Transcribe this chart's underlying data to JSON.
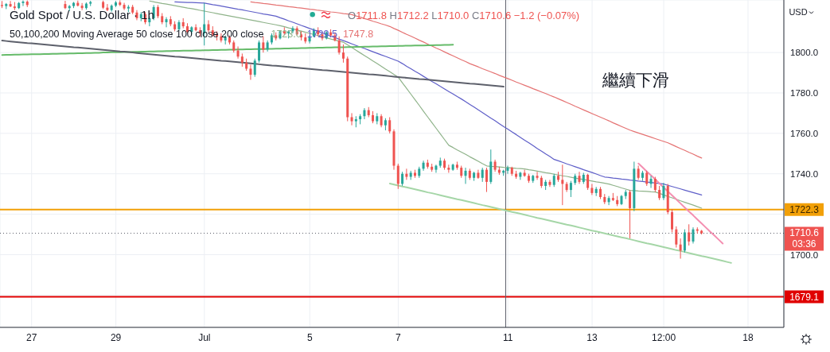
{
  "chart_data": {
    "type": "candlestick",
    "title": "Gold Spot / U.S. Dollar · 1h",
    "subtitle": "50,100,200 Moving Average 50 close 100 close 200 close",
    "ylabel": "USD",
    "annotations": [
      "O1711.8 H1712.2 L1710.0 C1710.6 −1.2 (−0.07%)",
      "繼續下滑",
      "1722.3",
      "1679.1",
      "1710.6\n03:36"
    ],
    "categories": [
      null,
      null,
      null,
      null,
      null,
      null,
      null,
      "27",
      null,
      null,
      null,
      null,
      null,
      null,
      null,
      null,
      null,
      null,
      null,
      null,
      null,
      null,
      null,
      null,
      null,
      null,
      null,
      "29",
      null,
      null,
      null,
      null,
      null,
      null,
      null,
      null,
      null,
      null,
      null,
      null,
      null,
      null,
      null,
      null,
      null,
      null,
      null,
      null,
      "Jul",
      null,
      null,
      null,
      null,
      null,
      null,
      null,
      null,
      null,
      null,
      null,
      null,
      null,
      null,
      null,
      null,
      null,
      null,
      null,
      null,
      null,
      null,
      null,
      null,
      "5",
      null,
      null,
      null,
      null,
      null,
      null,
      null,
      null,
      null,
      null,
      null,
      null,
      null,
      null,
      null,
      null,
      null,
      null,
      null,
      null,
      "7",
      null,
      null,
      null,
      null,
      null,
      null,
      null,
      null,
      null,
      null,
      null,
      null,
      null,
      null,
      null,
      null,
      null,
      null,
      null,
      null,
      null,
      null,
      null,
      null,
      null,
      "11",
      null,
      null,
      null,
      null,
      null,
      null,
      null,
      null,
      null,
      null,
      null,
      null,
      null,
      null,
      null,
      null,
      null,
      null,
      null,
      "13",
      null,
      null,
      null,
      null,
      null,
      null,
      null,
      null,
      null,
      null,
      null,
      null,
      null,
      null,
      null,
      null,
      "12:00",
      null,
      null,
      null,
      null,
      null,
      null,
      null,
      null,
      null,
      null,
      null,
      null,
      null,
      null,
      null,
      null,
      null,
      null,
      null,
      "18",
      null,
      null,
      null,
      null,
      null,
      null,
      null,
      null
    ],
    "ohlc": [
      [
        1823.5,
        1825.5,
        1822,
        1823
      ],
      [
        1823,
        1824.5,
        1821.5,
        1824
      ],
      [
        1824,
        1825.5,
        1822.5,
        1822.8
      ],
      [
        1822.8,
        1825,
        1821,
        1822
      ],
      [
        1822,
        1825,
        1821.5,
        1824.5
      ],
      [
        1824.5,
        1825.8,
        1823,
        1825.2
      ],
      [
        1825.2,
        1825.8,
        1822.5,
        1823.5
      ],
      null,
      null,
      null,
      null,
      null,
      null,
      null,
      null,
      [
        1824,
        1825.6,
        1821.5,
        1822
      ],
      [
        1822,
        1823.5,
        1820.5,
        1823
      ],
      [
        1823,
        1825,
        1822,
        1824.6
      ],
      [
        1824.6,
        1825.7,
        1822.8,
        1823.2
      ],
      [
        1823.2,
        1824.5,
        1821,
        1822
      ],
      [
        1822,
        1824.8,
        1821.2,
        1824.2
      ],
      [
        1824.2,
        1825.6,
        1823,
        1825
      ],
      null,
      null,
      [
        1825,
        1825.7,
        1821.5,
        1822.2
      ],
      [
        1822.2,
        1824,
        1820.5,
        1821
      ],
      [
        1821,
        1823.8,
        1820.2,
        1823.2
      ],
      [
        1823.2,
        1825.5,
        1822.5,
        1824.8
      ],
      [
        1824.8,
        1825.8,
        1823,
        1823.6
      ],
      [
        1823.6,
        1824.6,
        1821,
        1821.8
      ],
      [
        1821.8,
        1823.5,
        1820,
        1822.6
      ],
      [
        1822.6,
        1823.6,
        1819,
        1819.8
      ],
      [
        1819.8,
        1821,
        1816,
        1817
      ],
      [
        1817,
        1820,
        1815.5,
        1819
      ],
      [
        1819,
        1820,
        1814,
        1815
      ],
      [
        1815,
        1818,
        1813,
        1817
      ],
      [
        1817,
        1823.5,
        1816,
        1822.5
      ],
      [
        1822.5,
        1823.5,
        1817,
        1818
      ],
      [
        1818,
        1819.5,
        1814,
        1815
      ],
      [
        1815,
        1817.5,
        1812.5,
        1816.5
      ],
      [
        1816.5,
        1818,
        1813,
        1814
      ],
      [
        1814,
        1815.5,
        1810.5,
        1811.5
      ],
      [
        1811.5,
        1816,
        1810.8,
        1815
      ],
      [
        1815,
        1817,
        1812,
        1813
      ],
      [
        1813,
        1814.5,
        1809.5,
        1810.2
      ],
      [
        1810.2,
        1813,
        1809,
        1812.5
      ],
      [
        1812.5,
        1814,
        1810.5,
        1811
      ],
      [
        1811,
        1812.5,
        1808,
        1809.5
      ],
      [
        1809.5,
        1824.5,
        1803.5,
        1814
      ],
      [
        1814,
        1816,
        1810,
        1811
      ],
      [
        1811,
        1813,
        1808,
        1809
      ],
      [
        1809,
        1810.5,
        1806,
        1808
      ],
      [
        1808,
        1809.5,
        1805,
        1806
      ],
      [
        1806,
        1808.5,
        1804,
        1807.5
      ],
      [
        1807.5,
        1808.5,
        1804,
        1805
      ],
      [
        1805,
        1806,
        1800,
        1801
      ],
      [
        1801,
        1803,
        1797,
        1798
      ],
      [
        1798,
        1799.5,
        1793,
        1795
      ],
      [
        1795,
        1797,
        1791,
        1792
      ],
      [
        1792,
        1794,
        1786.5,
        1789
      ],
      [
        1789,
        1797,
        1788,
        1796
      ],
      [
        1796,
        1806,
        1795,
        1805
      ],
      [
        1805,
        1808,
        1800,
        1801.5
      ],
      [
        1801.5,
        1806,
        1800.5,
        1805
      ],
      [
        1805,
        1809.5,
        1804,
        1808.5
      ],
      [
        1808.5,
        1810,
        1806,
        1807
      ],
      [
        1807,
        1811,
        1806.5,
        1810.5
      ],
      [
        1810.5,
        1812.5,
        1808.5,
        1809.5
      ],
      [
        1809.5,
        1811,
        1807,
        1810.5
      ],
      [
        1810.5,
        1813,
        1809.5,
        1812
      ],
      [
        1812,
        1813,
        1808.5,
        1809
      ],
      [
        1809,
        1810.5,
        1806,
        1807.5
      ],
      [
        1807.5,
        1809.5,
        1804.5,
        1805.5
      ],
      [
        1805.5,
        1808.5,
        1804.5,
        1808
      ],
      [
        1808,
        1812,
        1807.5,
        1811
      ],
      [
        1811,
        1812.5,
        1808,
        1809
      ],
      [
        1809,
        1810,
        1806,
        1807
      ],
      [
        1807,
        1810.5,
        1806.5,
        1810
      ],
      [
        1810,
        1811.5,
        1807.5,
        1808.5
      ],
      [
        1808.5,
        1810,
        1805.5,
        1806
      ],
      [
        1806,
        1808,
        1799,
        1800
      ],
      [
        1800,
        1804,
        1795,
        1797
      ],
      [
        1797,
        1798,
        1766,
        1768
      ],
      [
        1768,
        1770,
        1764,
        1766
      ],
      [
        1766,
        1768.5,
        1763,
        1767
      ],
      [
        1767,
        1769.5,
        1764.5,
        1768.5
      ],
      [
        1768.5,
        1772.5,
        1767,
        1771.5
      ],
      [
        1771.5,
        1773,
        1768,
        1769
      ],
      [
        1769,
        1771,
        1765,
        1766
      ],
      [
        1766,
        1770,
        1764.5,
        1768.5
      ],
      [
        1768.5,
        1769.5,
        1763,
        1764
      ],
      [
        1764,
        1767.5,
        1761.5,
        1766.5
      ],
      [
        1766.5,
        1768,
        1760,
        1761
      ],
      [
        1761,
        1762,
        1742,
        1744
      ],
      [
        1744,
        1745,
        1732.5,
        1735
      ],
      [
        1735,
        1741,
        1734,
        1740
      ],
      [
        1740,
        1742.5,
        1737,
        1738.5
      ],
      [
        1738.5,
        1741.5,
        1737,
        1740.5
      ],
      [
        1740.5,
        1742,
        1738,
        1739
      ],
      [
        1739,
        1743.5,
        1738,
        1742.5
      ],
      [
        1742.5,
        1746.5,
        1741.5,
        1745.5
      ],
      [
        1745.5,
        1747,
        1742.5,
        1743.5
      ],
      [
        1743.5,
        1745,
        1741,
        1742
      ],
      [
        1742,
        1744.5,
        1740.5,
        1744
      ],
      [
        1744,
        1748,
        1743,
        1746.5
      ],
      [
        1746.5,
        1747.5,
        1742,
        1743
      ],
      [
        1743,
        1744.5,
        1740.5,
        1742
      ],
      [
        1742,
        1745,
        1741.5,
        1744.5
      ],
      [
        1744.5,
        1746,
        1742,
        1743
      ],
      [
        1743,
        1744,
        1738,
        1739
      ],
      [
        1739,
        1743,
        1735,
        1741.5
      ],
      [
        1741.5,
        1742.5,
        1737,
        1738
      ],
      [
        1738,
        1741,
        1736.5,
        1740.5
      ],
      [
        1740.5,
        1742,
        1737.5,
        1738
      ],
      [
        1738,
        1743,
        1736,
        1742
      ],
      [
        1742,
        1743,
        1731,
        1736
      ],
      [
        1736,
        1752,
        1735,
        1746
      ],
      [
        1746,
        1747,
        1741,
        1742
      ],
      [
        1742,
        1743.5,
        1739.5,
        1740.5
      ],
      [
        1740.5,
        1742,
        1739,
        1741.5
      ],
      [
        1741.5,
        1744,
        1740,
        1743
      ],
      [
        1743,
        1743.5,
        1739,
        1740
      ],
      [
        1740,
        1741.5,
        1737.5,
        1738.5
      ],
      [
        1738.5,
        1741,
        1737,
        1740.5
      ],
      [
        1740.5,
        1742,
        1738.5,
        1739
      ],
      [
        1739,
        1740,
        1735.5,
        1736.5
      ],
      [
        1736.5,
        1739.5,
        1735.5,
        1739
      ],
      [
        1739,
        1741,
        1737,
        1738
      ],
      [
        1738,
        1739,
        1733,
        1734
      ],
      [
        1734,
        1737,
        1732,
        1736
      ],
      [
        1736,
        1737,
        1733.5,
        1734.5
      ],
      [
        1734.5,
        1740,
        1733.5,
        1739
      ],
      [
        1739,
        1741,
        1736,
        1737
      ],
      [
        1737,
        1744.5,
        1724.5,
        1735
      ],
      [
        1735,
        1736,
        1731,
        1732
      ],
      [
        1732,
        1736.5,
        1728.5,
        1735.5
      ],
      [
        1735.5,
        1740,
        1734.5,
        1739
      ],
      [
        1739,
        1741,
        1735,
        1736
      ],
      [
        1736,
        1740.5,
        1735,
        1739.5
      ],
      [
        1739.5,
        1740,
        1732,
        1733
      ],
      [
        1733,
        1735,
        1729.5,
        1730.5
      ],
      [
        1730.5,
        1733.5,
        1729,
        1732.5
      ],
      [
        1732.5,
        1733.5,
        1727.5,
        1728.5
      ],
      [
        1728.5,
        1730,
        1725,
        1726
      ],
      [
        1726,
        1729,
        1724.5,
        1728
      ],
      [
        1728,
        1730.5,
        1726.5,
        1727
      ],
      [
        1727,
        1729,
        1724,
        1725
      ],
      [
        1725,
        1729.5,
        1724.5,
        1729
      ],
      [
        1729,
        1732,
        1727.5,
        1731
      ],
      [
        1731,
        1732,
        1708,
        1723
      ],
      [
        1723,
        1746,
        1721.5,
        1742.5
      ],
      [
        1742.5,
        1744,
        1737,
        1738
      ],
      [
        1738,
        1741.5,
        1736.5,
        1740.5
      ],
      [
        1740.5,
        1741.5,
        1734,
        1735
      ],
      [
        1735,
        1739,
        1733,
        1737.5
      ],
      [
        1737.5,
        1738.5,
        1731,
        1732
      ],
      [
        1732,
        1734,
        1727,
        1728
      ],
      [
        1728,
        1735.5,
        1727,
        1734
      ],
      [
        1734,
        1735,
        1720,
        1721
      ],
      [
        1721,
        1722.5,
        1711,
        1712.5
      ],
      [
        1712.5,
        1714,
        1703.5,
        1705
      ],
      [
        1705,
        1708,
        1698,
        1702
      ],
      [
        1702,
        1712.5,
        1701,
        1711
      ],
      [
        1711,
        1715,
        1704.5,
        1706.5
      ],
      [
        1706.5,
        1713.5,
        1705.5,
        1712.5
      ],
      [
        1712.5,
        1713.5,
        1710.5,
        1711.8
      ],
      [
        1711.8,
        1712.2,
        1710.0,
        1710.6
      ],
      null,
      null,
      null,
      null,
      null,
      null,
      null,
      null,
      null,
      null,
      null,
      null,
      null,
      null,
      null,
      null,
      null,
      null,
      null
    ],
    "series": [
      {
        "type": "line",
        "name": "1723.0",
        "color": "#8fb38a",
        "values": [
          null,
          null,
          null,
          null,
          null,
          null,
          null,
          null,
          null,
          null,
          null,
          null,
          null,
          null,
          null,
          null,
          null,
          null,
          null,
          null,
          null,
          null,
          null,
          null,
          null,
          null,
          null,
          null,
          null,
          null,
          null,
          null,
          null,
          null,
          null,
          1825.5,
          1825.1,
          1824.7,
          1824.3,
          1824.0,
          1823.6,
          1823.2,
          1822.8,
          1822.4,
          1822.0,
          1821.7,
          1821.3,
          1820.9,
          1820.5,
          1820.1,
          1819.7,
          1819.3,
          1818.9,
          1818.5,
          1818.1,
          1817.7,
          1817.3,
          1816.9,
          1816.5,
          1816.1,
          1815.7,
          1815.3,
          1814.9,
          1814.5,
          1814.1,
          1813.7,
          1813.3,
          1812.8,
          1812.2,
          1811.7,
          1811.1,
          1810.6,
          1810.0,
          1809.5,
          1808.9,
          1808.4,
          1807.8,
          1807.3,
          1806.7,
          1806.2,
          1805.6,
          1805.1,
          1803.8,
          1802.5,
          1801.1,
          1799.8,
          1798.5,
          1797.2,
          1795.8,
          1794.5,
          1793.2,
          1791.8,
          1790.5,
          1789.1,
          1787.8,
          1785.0,
          1782.2,
          1779.4,
          1776.6,
          1773.8,
          1770.9,
          1768.1,
          1765.3,
          1762.5,
          1759.7,
          1756.9,
          1754.1,
          1753.0,
          1751.8,
          1750.7,
          1749.6,
          1748.4,
          1747.3,
          1746.2,
          1745.0,
          1743.9,
          1743.7,
          1743.6,
          1743.4,
          1743.2,
          1743.1,
          1742.9,
          1742.7,
          1742.6,
          1742.4,
          1742.0,
          1741.7,
          1741.3,
          1740.9,
          1740.5,
          1740.2,
          1739.8,
          1739.4,
          1739.0,
          1738.7,
          1738.3,
          1737.9,
          1737.5,
          1737.2,
          1736.8,
          1736.4,
          1736.0,
          1735.7,
          1735.3,
          1734.9,
          1734.3,
          1733.7,
          1733.0,
          1732.4,
          1731.8,
          1731.7,
          1731.5,
          1731.4,
          1731.3,
          1731.1,
          1731.0,
          1730.3,
          1729.5,
          1728.8,
          1728.1,
          1727.4,
          1726.6,
          1725.9,
          1725.2,
          1724.5,
          1723.7,
          1723.0,
          null,
          null,
          null,
          null,
          null,
          null,
          null,
          null,
          null,
          null,
          null,
          null,
          null,
          null,
          null,
          null,
          null,
          null,
          null
        ]
      },
      {
        "type": "line",
        "name": "1729.5",
        "color": "#5e5ec8",
        "values": [
          null,
          null,
          null,
          null,
          null,
          null,
          null,
          null,
          null,
          null,
          null,
          null,
          null,
          null,
          null,
          null,
          null,
          null,
          null,
          null,
          null,
          null,
          null,
          null,
          null,
          null,
          null,
          null,
          null,
          null,
          null,
          null,
          null,
          null,
          null,
          null,
          null,
          null,
          null,
          null,
          null,
          1825.1,
          1825.0,
          1824.9,
          1824.8,
          1824.8,
          1824.7,
          1824.6,
          1824.5,
          1824.1,
          1823.7,
          1823.4,
          1823.0,
          1822.6,
          1822.2,
          1821.8,
          1821.4,
          1821.1,
          1820.7,
          1820.3,
          1819.9,
          1819.5,
          1819.1,
          1818.8,
          1818.4,
          1818.0,
          1817.2,
          1816.5,
          1815.7,
          1815.0,
          1814.2,
          1813.4,
          1812.7,
          1811.9,
          1811.2,
          1810.4,
          1809.7,
          1808.9,
          1808.1,
          1807.4,
          1806.6,
          1805.9,
          1805.1,
          1804.3,
          1803.5,
          1802.7,
          1802.0,
          1801.2,
          1800.4,
          1799.6,
          1798.8,
          1798.1,
          1797.3,
          1796.5,
          1795.7,
          1794.5,
          1793.2,
          1792.0,
          1790.7,
          1789.5,
          1788.2,
          1787.0,
          1785.7,
          1784.5,
          1783.2,
          1782.0,
          1780.7,
          1779.5,
          1778.2,
          1777.0,
          1775.7,
          1774.3,
          1773.0,
          1771.6,
          1770.3,
          1768.9,
          1767.5,
          1766.2,
          1764.8,
          1763.4,
          1762.1,
          1760.7,
          1759.4,
          1758.0,
          1756.6,
          1755.3,
          1753.9,
          1752.5,
          1751.2,
          1749.8,
          1748.5,
          1747.1,
          1746.4,
          1745.7,
          1744.9,
          1744.2,
          1743.5,
          1742.8,
          1742.0,
          1741.3,
          1740.6,
          1739.9,
          1739.1,
          1738.4,
          1738.2,
          1737.9,
          1737.7,
          1737.4,
          1737.2,
          1736.9,
          1736.7,
          1736.4,
          1736.2,
          1735.9,
          1735.7,
          1735.4,
          1735.2,
          1734.9,
          1734.3,
          1733.7,
          1733.1,
          1732.5,
          1731.9,
          1731.3,
          1730.7,
          1730.1,
          1729.5,
          null,
          null,
          null,
          null,
          null,
          null,
          null,
          null,
          null,
          null,
          null,
          null,
          null,
          null,
          null,
          null,
          null,
          null,
          null
        ]
      },
      {
        "type": "line",
        "name": "1747.8",
        "color": "#e57373",
        "values": [
          null,
          null,
          null,
          null,
          null,
          null,
          null,
          null,
          null,
          null,
          null,
          null,
          null,
          null,
          null,
          null,
          null,
          null,
          null,
          null,
          null,
          null,
          null,
          null,
          null,
          null,
          null,
          null,
          null,
          null,
          null,
          null,
          null,
          null,
          null,
          null,
          null,
          null,
          null,
          null,
          null,
          null,
          null,
          null,
          null,
          null,
          null,
          null,
          null,
          null,
          null,
          null,
          null,
          null,
          null,
          null,
          null,
          null,
          null,
          1825.1,
          1824.8,
          1824.6,
          1824.3,
          1824.1,
          1823.8,
          1823.5,
          1823.3,
          1823.0,
          1822.7,
          1822.5,
          1822.2,
          1822.0,
          1821.7,
          1821.4,
          1821.2,
          1820.9,
          1820.7,
          1820.4,
          1820.1,
          1819.9,
          1819.6,
          1819.3,
          1819.1,
          1818.8,
          1818.1,
          1817.5,
          1816.8,
          1816.2,
          1815.5,
          1814.9,
          1814.2,
          1813.6,
          1812.9,
          1811.9,
          1811.0,
          1810.0,
          1809.0,
          1808.1,
          1807.1,
          1806.1,
          1805.2,
          1804.2,
          1803.2,
          1802.2,
          1801.3,
          1800.3,
          1799.3,
          1798.4,
          1797.4,
          1796.4,
          1795.5,
          1794.5,
          1793.7,
          1792.9,
          1792.0,
          1791.2,
          1790.4,
          1789.6,
          1788.7,
          1787.9,
          1787.1,
          1786.3,
          1785.4,
          1784.6,
          1783.8,
          1783.0,
          1782.1,
          1781.3,
          1780.5,
          1779.7,
          1778.8,
          1778.0,
          1777.1,
          1776.2,
          1775.3,
          1774.4,
          1773.4,
          1772.5,
          1771.6,
          1770.7,
          1769.8,
          1768.9,
          1768.0,
          1767.1,
          1766.2,
          1765.2,
          1764.3,
          1763.4,
          1762.5,
          1761.6,
          1760.9,
          1760.2,
          1759.5,
          1758.8,
          1758.1,
          1757.4,
          1756.7,
          1756.0,
          1755.3,
          1754.4,
          1753.4,
          1752.5,
          1751.6,
          1750.6,
          1749.7,
          1748.7,
          1747.8,
          null,
          null,
          null,
          null,
          null,
          null,
          null,
          null,
          null,
          null,
          null,
          null,
          null,
          null,
          null,
          null,
          null,
          null,
          null
        ]
      },
      {
        "type": "line",
        "color": "#66bb6a",
        "values": [
          1798.8,
          1798.9,
          1798.9,
          1799.0,
          1799.0,
          1799.1,
          1799.1,
          1799.2,
          1799.2,
          1799.2,
          1799.3,
          1799.3,
          1799.4,
          1799.4,
          1799.5,
          1799.5,
          1799.6,
          1799.6,
          1799.7,
          1799.7,
          1799.8,
          1799.8,
          1799.9,
          1799.9,
          1800.0,
          1800.0,
          1800.1,
          1800.1,
          1800.1,
          1800.2,
          1800.2,
          1800.3,
          1800.3,
          1800.4,
          1800.4,
          1800.5,
          1800.5,
          1800.6,
          1800.6,
          1800.7,
          1800.7,
          1800.8,
          1800.8,
          1800.9,
          1800.9,
          1800.9,
          1801.0,
          1801.0,
          1801.1,
          1801.1,
          1801.2,
          1801.2,
          1801.3,
          1801.3,
          1801.4,
          1801.4,
          1801.5,
          1801.5,
          1801.6,
          1801.6,
          1801.7,
          1801.7,
          1801.7,
          1801.8,
          1801.8,
          1801.9,
          1801.9,
          1802.0,
          1802.0,
          1802.1,
          1802.1,
          1802.2,
          1802.2,
          1802.3,
          1802.3,
          1802.4,
          1802.4,
          1802.5,
          1802.5,
          1802.6,
          1802.6,
          1802.6,
          1802.7,
          1802.7,
          1802.8,
          1802.8,
          1802.9,
          1802.9,
          1803.0,
          1803.0,
          1803.1,
          1803.1,
          1803.2,
          1803.2,
          1803.3,
          1803.3,
          1803.4,
          1803.4,
          1803.5,
          1803.5,
          1803.5,
          1803.6,
          1803.6,
          1803.7,
          1803.7,
          1803.8,
          1803.8,
          1803.9,
          null,
          null,
          null,
          null,
          null,
          null,
          null,
          null,
          null,
          null,
          null,
          null,
          null,
          null,
          null,
          null,
          null,
          null,
          null,
          null,
          null,
          null,
          null,
          null,
          null,
          null,
          null,
          null,
          null,
          null,
          null,
          null,
          null,
          null,
          null,
          null,
          null,
          null,
          null,
          null,
          null,
          null,
          null,
          null,
          null,
          null,
          null,
          null,
          null,
          null,
          null,
          null,
          null,
          null,
          null,
          null,
          null,
          null,
          null,
          null,
          null,
          null,
          null,
          null,
          null,
          null,
          null,
          null,
          null,
          null,
          null,
          null,
          null,
          null,
          null,
          null,
          null,
          null
        ]
      },
      {
        "type": "line",
        "color": "#5d606b",
        "values": [
          1805.9,
          1805.7,
          1805.5,
          1805.3,
          1805.1,
          1804.9,
          1804.7,
          1804.6,
          1804.4,
          1804.2,
          1804.0,
          1803.8,
          1803.6,
          1803.4,
          1803.2,
          1803.0,
          1802.8,
          1802.6,
          1802.5,
          1802.3,
          1802.1,
          1801.9,
          1801.7,
          1801.5,
          1801.3,
          1801.1,
          1800.9,
          1800.7,
          1800.5,
          1800.4,
          1800.2,
          1800.0,
          1799.8,
          1799.6,
          1799.4,
          1799.2,
          1799.0,
          1798.8,
          1798.6,
          1798.4,
          1798.2,
          1798.0,
          1797.9,
          1797.7,
          1797.5,
          1797.3,
          1797.1,
          1796.9,
          1796.7,
          1796.5,
          1796.3,
          1796.1,
          1795.9,
          1795.8,
          1795.6,
          1795.4,
          1795.2,
          1795.0,
          1794.8,
          1794.6,
          1794.4,
          1794.2,
          1794.0,
          1793.8,
          1793.6,
          1793.5,
          1793.3,
          1793.1,
          1792.9,
          1792.7,
          1792.5,
          1792.3,
          1792.1,
          1791.9,
          1791.7,
          1791.5,
          1791.3,
          1791.2,
          1791.0,
          1790.8,
          1790.6,
          1790.4,
          1790.2,
          1790.0,
          1789.8,
          1789.6,
          1789.4,
          1789.2,
          1789.1,
          1788.9,
          1788.7,
          1788.5,
          1788.3,
          1788.1,
          1787.9,
          1787.7,
          1787.5,
          1787.3,
          1787.1,
          1786.9,
          1786.8,
          1786.6,
          1786.4,
          1786.2,
          1786.0,
          1785.8,
          1785.6,
          1785.4,
          1785.2,
          1785.0,
          1784.8,
          1784.6,
          1784.5,
          1784.3,
          1784.1,
          1783.9,
          1783.7,
          1783.5,
          1783.3,
          1783.1,
          null,
          null,
          null,
          null,
          null,
          null,
          null,
          null,
          null,
          null,
          null,
          null,
          null,
          null,
          null,
          null,
          null,
          null,
          null,
          null,
          null,
          null,
          null,
          null,
          null,
          null,
          null,
          null,
          null,
          null,
          null,
          null,
          null,
          null,
          null,
          null,
          null,
          null,
          null,
          null,
          null,
          null,
          null,
          null,
          null,
          null,
          null,
          null,
          null,
          null,
          null,
          null,
          null,
          null,
          null,
          null,
          null,
          null,
          null,
          null,
          null,
          null,
          null,
          null,
          null,
          null
        ]
      },
      {
        "type": "line",
        "color": "#a5d6a7",
        "values": [
          null,
          null,
          null,
          null,
          null,
          null,
          null,
          null,
          null,
          null,
          null,
          null,
          null,
          null,
          null,
          null,
          null,
          null,
          null,
          null,
          null,
          null,
          null,
          null,
          null,
          null,
          null,
          null,
          null,
          null,
          null,
          null,
          null,
          null,
          null,
          null,
          null,
          null,
          null,
          null,
          null,
          null,
          null,
          null,
          null,
          null,
          null,
          null,
          null,
          null,
          null,
          null,
          null,
          null,
          null,
          null,
          null,
          null,
          null,
          null,
          null,
          null,
          null,
          null,
          null,
          null,
          null,
          null,
          null,
          null,
          null,
          null,
          null,
          null,
          null,
          null,
          null,
          null,
          null,
          null,
          null,
          null,
          null,
          null,
          null,
          null,
          null,
          null,
          null,
          null,
          null,
          null,
          1735.2,
          1734.7,
          1734.2,
          1733.7,
          1733.3,
          1732.8,
          1732.3,
          1731.8,
          1731.3,
          1730.8,
          1730.4,
          1729.9,
          1729.4,
          1728.9,
          1728.4,
          1727.9,
          1727.4,
          1727.0,
          1726.5,
          1726.0,
          1725.5,
          1725.0,
          1724.5,
          1724.1,
          1723.6,
          1723.1,
          1722.6,
          1722.1,
          1721.6,
          1721.1,
          1720.7,
          1720.2,
          1719.7,
          1719.2,
          1718.7,
          1718.2,
          1717.8,
          1717.3,
          1716.8,
          1716.3,
          1715.8,
          1715.3,
          1714.8,
          1714.4,
          1713.9,
          1713.4,
          1712.9,
          1712.4,
          1711.9,
          1711.5,
          1711.0,
          1710.5,
          1710.0,
          1709.5,
          1709.0,
          1708.5,
          1708.1,
          1707.6,
          1707.1,
          1706.6,
          1706.1,
          1705.6,
          1705.2,
          1704.7,
          1704.2,
          1703.7,
          1703.2,
          1702.7,
          1702.2,
          1701.8,
          1701.3,
          1700.8,
          1700.3,
          1699.8,
          1699.3,
          1698.9,
          1698.4,
          1697.9,
          1697.4,
          1696.9,
          1696.4,
          1695.9,
          null,
          null,
          null,
          null,
          null,
          null,
          null,
          null,
          null,
          null,
          null,
          null
        ]
      },
      {
        "type": "line",
        "color": "#f48fb1",
        "values": [
          null,
          null,
          null,
          null,
          null,
          null,
          null,
          null,
          null,
          null,
          null,
          null,
          null,
          null,
          null,
          null,
          null,
          null,
          null,
          null,
          null,
          null,
          null,
          null,
          null,
          null,
          null,
          null,
          null,
          null,
          null,
          null,
          null,
          null,
          null,
          null,
          null,
          null,
          null,
          null,
          null,
          null,
          null,
          null,
          null,
          null,
          null,
          null,
          null,
          null,
          null,
          null,
          null,
          null,
          null,
          null,
          null,
          null,
          null,
          null,
          null,
          null,
          null,
          null,
          null,
          null,
          null,
          null,
          null,
          null,
          null,
          null,
          null,
          null,
          null,
          null,
          null,
          null,
          null,
          null,
          null,
          null,
          null,
          null,
          null,
          null,
          null,
          null,
          null,
          null,
          null,
          null,
          null,
          null,
          null,
          null,
          null,
          null,
          null,
          null,
          null,
          null,
          null,
          null,
          null,
          null,
          null,
          null,
          null,
          null,
          null,
          null,
          null,
          null,
          null,
          null,
          null,
          null,
          null,
          null,
          null,
          null,
          null,
          null,
          null,
          null,
          null,
          null,
          null,
          null,
          null,
          null,
          null,
          null,
          null,
          null,
          null,
          null,
          null,
          null,
          null,
          null,
          null,
          null,
          null,
          null,
          null,
          null,
          null,
          null,
          null,
          1745.1,
          1743.1,
          1741.1,
          1739.2,
          1737.2,
          1735.2,
          1733.2,
          1731.2,
          1729.3,
          1727.3,
          1725.3,
          1723.3,
          1721.3,
          1719.4,
          1717.4,
          1715.4,
          1713.4,
          1711.4,
          1709.5,
          1707.5,
          1705.5,
          null,
          null,
          null,
          null,
          null,
          null,
          null,
          null,
          null,
          null,
          null,
          null,
          null,
          null
        ]
      }
    ],
    "ylim": [
      1664,
      1826
    ],
    "yticks": [
      {
        "value": 1680,
        "label": null
      },
      {
        "value": 1700,
        "label": "1700.0"
      },
      {
        "value": 1720,
        "label": null
      },
      {
        "value": 1740,
        "label": "1740.0"
      },
      {
        "value": 1760,
        "label": "1760.0"
      },
      {
        "value": 1780,
        "label": "1780.0"
      },
      {
        "value": 1800,
        "label": "1800.0"
      }
    ],
    "ref_lines": [
      {
        "axis": "y",
        "value": 1722.3,
        "color": "#f2a007"
      },
      {
        "axis": "y",
        "value": 1679.1,
        "color": "#e00000"
      },
      {
        "axis": "y",
        "value": 1710.6,
        "color": "#5d606b",
        "line_style": "dotted"
      },
      {
        "axis": "x",
        "value": "11",
        "color": "#5d606b"
      }
    ],
    "grid": true,
    "legend": "top left"
  }
}
